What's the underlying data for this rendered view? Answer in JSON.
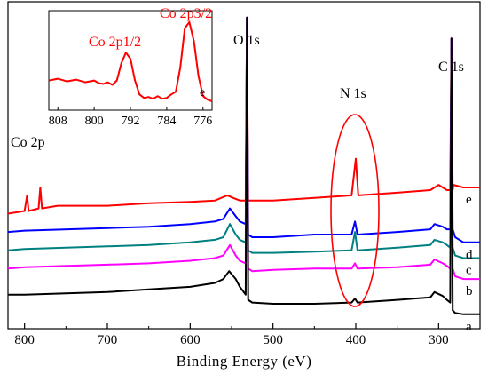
{
  "chart_data": {
    "type": "line",
    "xlabel": "Binding Energy (eV)",
    "ylabel": "",
    "xlim": [
      820,
      250
    ],
    "x_ticks": [
      800,
      700,
      600,
      500,
      400,
      300
    ],
    "series": [
      {
        "name": "e",
        "color": "#ff0000",
        "points": [
          [
            820,
            0.31
          ],
          [
            800,
            0.32
          ],
          [
            797,
            0.38
          ],
          [
            795,
            0.32
          ],
          [
            783,
            0.33
          ],
          [
            781,
            0.41
          ],
          [
            779,
            0.33
          ],
          [
            760,
            0.34
          ],
          [
            700,
            0.34
          ],
          [
            650,
            0.35
          ],
          [
            600,
            0.355
          ],
          [
            570,
            0.36
          ],
          [
            555,
            0.38
          ],
          [
            548,
            0.37
          ],
          [
            540,
            0.36
          ],
          [
            533,
            0.36
          ],
          [
            531.5,
            1.06
          ],
          [
            530,
            0.36
          ],
          [
            500,
            0.36
          ],
          [
            450,
            0.37
          ],
          [
            405,
            0.38
          ],
          [
            400,
            0.52
          ],
          [
            397,
            0.38
          ],
          [
            350,
            0.39
          ],
          [
            310,
            0.4
          ],
          [
            300,
            0.42
          ],
          [
            290,
            0.4
          ],
          [
            286,
            0.4
          ],
          [
            284.5,
            0.98
          ],
          [
            283,
            0.4
          ],
          [
            282,
            0.42
          ],
          [
            270,
            0.41
          ],
          [
            250,
            0.41
          ]
        ]
      },
      {
        "name": "d",
        "color": "#0000ff",
        "points": [
          [
            820,
            0.24
          ],
          [
            800,
            0.245
          ],
          [
            700,
            0.255
          ],
          [
            650,
            0.26
          ],
          [
            600,
            0.27
          ],
          [
            570,
            0.28
          ],
          [
            560,
            0.29
          ],
          [
            552,
            0.33
          ],
          [
            545,
            0.3
          ],
          [
            540,
            0.28
          ],
          [
            533,
            0.27
          ],
          [
            531.5,
            1.06
          ],
          [
            530,
            0.23
          ],
          [
            525,
            0.22
          ],
          [
            500,
            0.22
          ],
          [
            450,
            0.23
          ],
          [
            405,
            0.23
          ],
          [
            401,
            0.28
          ],
          [
            398,
            0.23
          ],
          [
            350,
            0.24
          ],
          [
            310,
            0.25
          ],
          [
            305,
            0.27
          ],
          [
            295,
            0.26
          ],
          [
            290,
            0.25
          ],
          [
            286,
            0.25
          ],
          [
            284.5,
            0.98
          ],
          [
            283,
            0.25
          ],
          [
            280,
            0.22
          ],
          [
            270,
            0.2
          ],
          [
            250,
            0.2
          ]
        ]
      },
      {
        "name": "c",
        "color": "#008080",
        "points": [
          [
            820,
            0.17
          ],
          [
            800,
            0.175
          ],
          [
            700,
            0.185
          ],
          [
            650,
            0.19
          ],
          [
            600,
            0.2
          ],
          [
            570,
            0.21
          ],
          [
            560,
            0.22
          ],
          [
            552,
            0.27
          ],
          [
            545,
            0.23
          ],
          [
            540,
            0.21
          ],
          [
            533,
            0.2
          ],
          [
            531.5,
            1.06
          ],
          [
            530,
            0.17
          ],
          [
            525,
            0.16
          ],
          [
            500,
            0.16
          ],
          [
            450,
            0.165
          ],
          [
            405,
            0.17
          ],
          [
            401,
            0.24
          ],
          [
            398,
            0.17
          ],
          [
            350,
            0.18
          ],
          [
            310,
            0.19
          ],
          [
            305,
            0.21
          ],
          [
            295,
            0.2
          ],
          [
            290,
            0.19
          ],
          [
            286,
            0.18
          ],
          [
            284.5,
            0.98
          ],
          [
            283,
            0.18
          ],
          [
            280,
            0.15
          ],
          [
            270,
            0.14
          ],
          [
            250,
            0.14
          ]
        ]
      },
      {
        "name": "b",
        "color": "#ff00ff",
        "points": [
          [
            820,
            0.1
          ],
          [
            800,
            0.105
          ],
          [
            700,
            0.115
          ],
          [
            650,
            0.12
          ],
          [
            600,
            0.13
          ],
          [
            570,
            0.14
          ],
          [
            560,
            0.15
          ],
          [
            552,
            0.19
          ],
          [
            545,
            0.15
          ],
          [
            540,
            0.13
          ],
          [
            533,
            0.12
          ],
          [
            531.5,
            1.06
          ],
          [
            530,
            0.1
          ],
          [
            525,
            0.09
          ],
          [
            500,
            0.095
          ],
          [
            450,
            0.1
          ],
          [
            405,
            0.1
          ],
          [
            401,
            0.12
          ],
          [
            398,
            0.1
          ],
          [
            350,
            0.105
          ],
          [
            310,
            0.115
          ],
          [
            305,
            0.135
          ],
          [
            295,
            0.12
          ],
          [
            290,
            0.11
          ],
          [
            286,
            0.1
          ],
          [
            284.5,
            0.98
          ],
          [
            283,
            0.1
          ],
          [
            280,
            0.07
          ],
          [
            270,
            0.06
          ],
          [
            250,
            0.06
          ]
        ]
      },
      {
        "name": "a",
        "color": "#000000",
        "points": [
          [
            820,
            0.0
          ],
          [
            800,
            0.0
          ],
          [
            700,
            0.01
          ],
          [
            650,
            0.02
          ],
          [
            600,
            0.03
          ],
          [
            570,
            0.045
          ],
          [
            560,
            0.06
          ],
          [
            553,
            0.09
          ],
          [
            545,
            0.06
          ],
          [
            540,
            0.03
          ],
          [
            533,
            0.0
          ],
          [
            531.5,
            1.06
          ],
          [
            530,
            -0.02
          ],
          [
            525,
            -0.03
          ],
          [
            500,
            -0.035
          ],
          [
            450,
            -0.035
          ],
          [
            405,
            -0.03
          ],
          [
            401,
            -0.015
          ],
          [
            398,
            -0.03
          ],
          [
            350,
            -0.02
          ],
          [
            310,
            -0.01
          ],
          [
            305,
            0.01
          ],
          [
            295,
            -0.005
          ],
          [
            290,
            -0.02
          ],
          [
            286,
            -0.03
          ],
          [
            284.5,
            0.98
          ],
          [
            283,
            -0.06
          ],
          [
            280,
            -0.07
          ],
          [
            270,
            -0.075
          ],
          [
            250,
            -0.075
          ]
        ]
      }
    ],
    "annotations": {
      "o1s": "O 1s",
      "c1s": "C 1s",
      "n1s": "N 1s",
      "co2p": "Co 2p"
    },
    "inset": {
      "type": "line",
      "xlim": [
        810,
        774
      ],
      "x_ticks": [
        808,
        800,
        792,
        784,
        776
      ],
      "color": "#ff0000",
      "series_label": "e",
      "peak_labels": {
        "p12": "Co 2p1/2",
        "p32": "Co 2p3/2"
      },
      "points": [
        [
          810,
          0.3
        ],
        [
          808,
          0.32
        ],
        [
          806,
          0.29
        ],
        [
          804,
          0.31
        ],
        [
          802,
          0.28
        ],
        [
          800,
          0.3
        ],
        [
          799,
          0.27
        ],
        [
          798,
          0.26
        ],
        [
          797,
          0.28
        ],
        [
          796,
          0.25
        ],
        [
          795,
          0.3
        ],
        [
          794,
          0.5
        ],
        [
          793,
          0.62
        ],
        [
          792,
          0.55
        ],
        [
          791,
          0.3
        ],
        [
          790,
          0.14
        ],
        [
          789,
          0.1
        ],
        [
          788,
          0.11
        ],
        [
          787,
          0.09
        ],
        [
          786,
          0.12
        ],
        [
          785,
          0.09
        ],
        [
          784,
          0.1
        ],
        [
          783,
          0.14
        ],
        [
          782,
          0.17
        ],
        [
          781,
          0.45
        ],
        [
          780,
          0.9
        ],
        [
          779,
          0.97
        ],
        [
          778,
          0.75
        ],
        [
          777,
          0.35
        ],
        [
          776,
          0.12
        ],
        [
          775,
          0.08
        ],
        [
          774,
          0.06
        ]
      ]
    }
  }
}
